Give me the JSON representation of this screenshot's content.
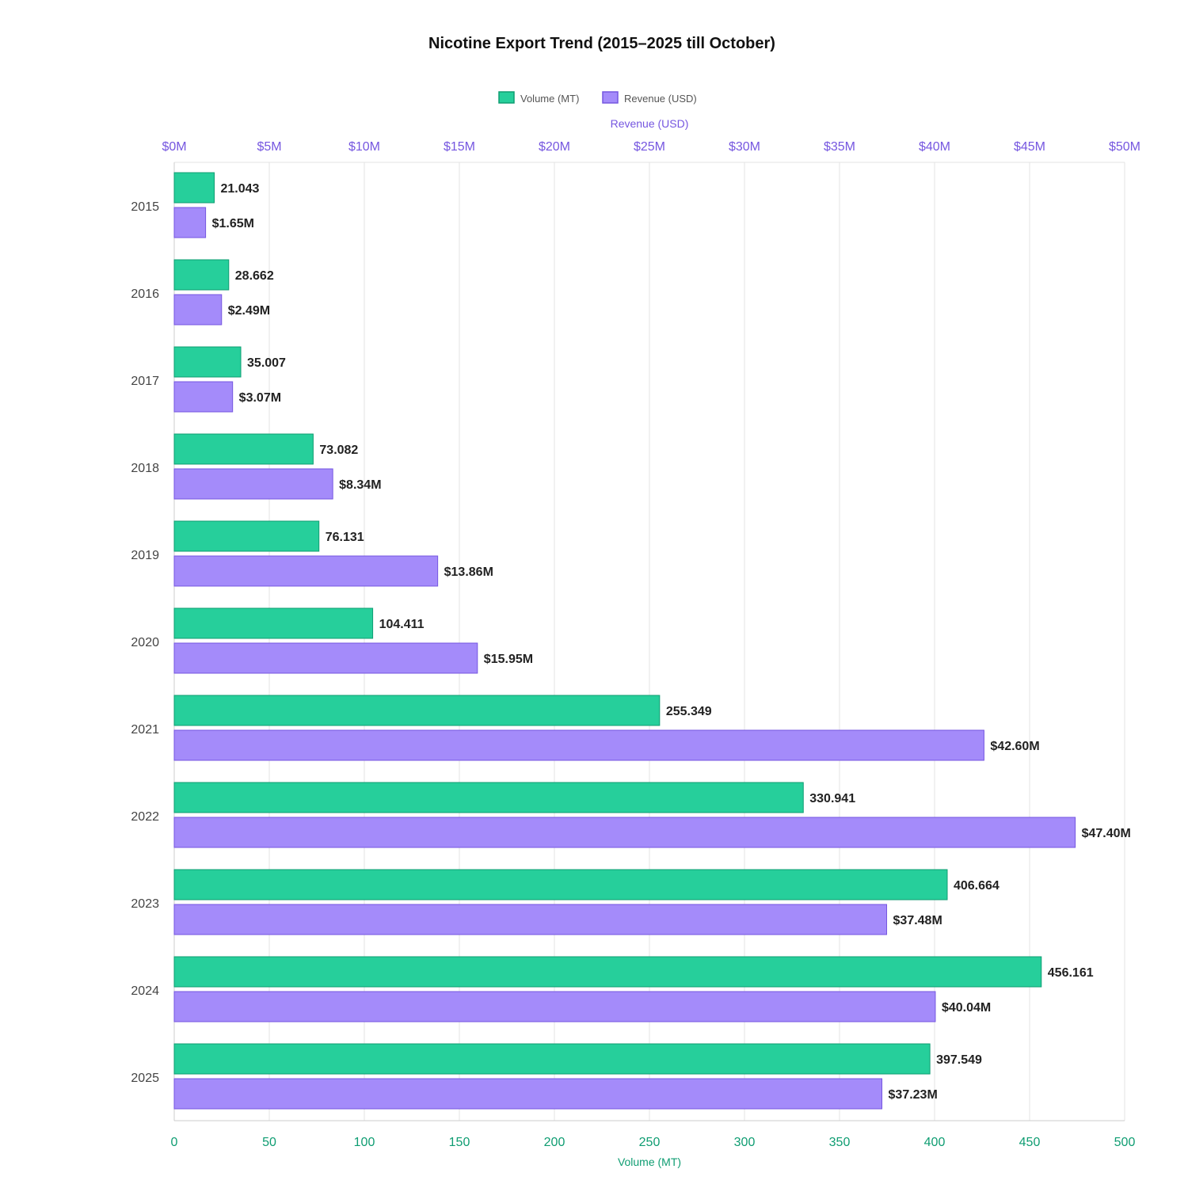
{
  "chart_data": {
    "type": "bar",
    "orientation": "horizontal",
    "title": "Nicotine Export Trend (2015–2025 till October)",
    "categories": [
      "2015",
      "2016",
      "2017",
      "2018",
      "2019",
      "2020",
      "2021",
      "2022",
      "2023",
      "2024",
      "2025"
    ],
    "series": [
      {
        "name": "Volume (MT)",
        "axis": "bottom",
        "color": "#26cf9b",
        "border": "#0f9d72",
        "values": [
          21.043,
          28.662,
          35.007,
          73.082,
          76.131,
          104.411,
          255.349,
          330.941,
          406.664,
          456.161,
          397.549
        ],
        "labels": [
          "21.043",
          "28.662",
          "35.007",
          "73.082",
          "76.131",
          "104.411",
          "255.349",
          "330.941",
          "406.664",
          "456.161",
          "397.549"
        ]
      },
      {
        "name": "Revenue (USD)",
        "axis": "top",
        "color": "#a48bfa",
        "border": "#7556e0",
        "values": [
          1.65,
          2.49,
          3.07,
          8.34,
          13.86,
          15.95,
          42.6,
          47.4,
          37.48,
          40.04,
          37.23
        ],
        "labels": [
          "$1.65M",
          "$2.49M",
          "$3.07M",
          "$8.34M",
          "$13.86M",
          "$15.95M",
          "$42.60M",
          "$47.40M",
          "$37.48M",
          "$40.04M",
          "$37.23M"
        ]
      }
    ],
    "xlabel_bottom": "Volume (MT)",
    "xlim_bottom": [
      0,
      500
    ],
    "xticks_bottom": [
      "0",
      "50",
      "100",
      "150",
      "200",
      "250",
      "300",
      "350",
      "400",
      "450",
      "500"
    ],
    "xlabel_top": "Revenue (USD)",
    "xlim_top": [
      0,
      50
    ],
    "xticks_top": [
      "$0M",
      "$5M",
      "$10M",
      "$15M",
      "$20M",
      "$25M",
      "$30M",
      "$35M",
      "$40M",
      "$45M",
      "$50M"
    ],
    "grid": true,
    "legend": "top-center",
    "bottom_axis_color": "#0f9d72",
    "top_axis_color": "#7556e0"
  }
}
